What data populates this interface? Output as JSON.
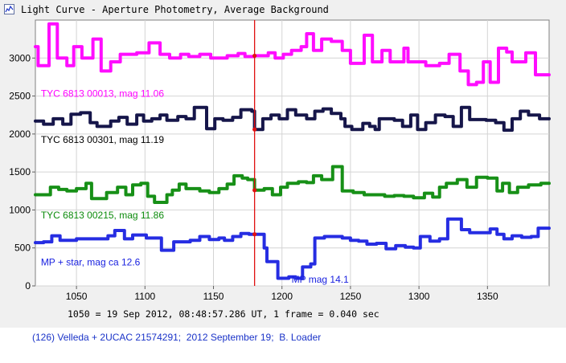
{
  "window": {
    "title": "Light Curve - Aperture Photometry, Average Background",
    "icon": "light-curve-app-icon"
  },
  "caption": "1050 = 19 Sep 2012, 08:48:57.286 UT, 1 frame = 0.040 sec",
  "footer": "(126) Velleda + 2UCAC 21574291;  2012 September 19;  B. Loader",
  "chart_data": {
    "type": "line",
    "title": "",
    "xlabel": "",
    "ylabel": "",
    "xlim": [
      1020,
      1395
    ],
    "ylim": [
      0,
      3500
    ],
    "x_ticks": [
      1050,
      1100,
      1150,
      1200,
      1250,
      1300,
      1350
    ],
    "y_ticks": [
      0,
      500,
      1000,
      1500,
      2000,
      2500,
      3000
    ],
    "grid": true,
    "event_marker_x": 1180,
    "series": [
      {
        "name": "TYC 6813 00013, mag 11.06",
        "color": "#ff00ff",
        "steps": [
          [
            1020,
            3150
          ],
          [
            1022,
            2900
          ],
          [
            1030,
            3450
          ],
          [
            1036,
            3000
          ],
          [
            1043,
            2900
          ],
          [
            1048,
            3150
          ],
          [
            1054,
            3000
          ],
          [
            1062,
            3250
          ],
          [
            1068,
            2830
          ],
          [
            1075,
            2950
          ],
          [
            1082,
            3050
          ],
          [
            1094,
            3070
          ],
          [
            1103,
            3200
          ],
          [
            1111,
            3050
          ],
          [
            1118,
            3000
          ],
          [
            1126,
            3050
          ],
          [
            1132,
            3020
          ],
          [
            1140,
            3050
          ],
          [
            1148,
            3000
          ],
          [
            1160,
            3030
          ],
          [
            1168,
            3060
          ],
          [
            1173,
            3020
          ],
          [
            1180,
            3030
          ],
          [
            1190,
            3070
          ],
          [
            1195,
            3000
          ],
          [
            1201,
            3050
          ],
          [
            1207,
            3100
          ],
          [
            1214,
            3150
          ],
          [
            1218,
            3320
          ],
          [
            1223,
            3100
          ],
          [
            1229,
            3250
          ],
          [
            1236,
            3220
          ],
          [
            1244,
            3100
          ],
          [
            1250,
            2930
          ],
          [
            1260,
            3300
          ],
          [
            1266,
            2950
          ],
          [
            1273,
            3100
          ],
          [
            1279,
            2950
          ],
          [
            1289,
            3130
          ],
          [
            1292,
            2950
          ],
          [
            1305,
            2900
          ],
          [
            1315,
            2930
          ],
          [
            1322,
            3050
          ],
          [
            1330,
            2830
          ],
          [
            1336,
            2650
          ],
          [
            1342,
            2680
          ],
          [
            1347,
            2950
          ],
          [
            1352,
            2680
          ],
          [
            1358,
            3130
          ],
          [
            1364,
            3080
          ],
          [
            1368,
            2950
          ],
          [
            1378,
            3070
          ],
          [
            1385,
            2780
          ],
          [
            1395,
            2780
          ]
        ]
      },
      {
        "name": "TYC 6813 00301, mag 11.19",
        "color": "#0a0a40",
        "steps": [
          [
            1020,
            2170
          ],
          [
            1026,
            2130
          ],
          [
            1033,
            2200
          ],
          [
            1040,
            2130
          ],
          [
            1046,
            2260
          ],
          [
            1053,
            2280
          ],
          [
            1060,
            2150
          ],
          [
            1065,
            2100
          ],
          [
            1075,
            2170
          ],
          [
            1081,
            2220
          ],
          [
            1087,
            2130
          ],
          [
            1094,
            2250
          ],
          [
            1099,
            2170
          ],
          [
            1105,
            2200
          ],
          [
            1111,
            2250
          ],
          [
            1116,
            2180
          ],
          [
            1124,
            2230
          ],
          [
            1130,
            2200
          ],
          [
            1136,
            2350
          ],
          [
            1145,
            2070
          ],
          [
            1151,
            2200
          ],
          [
            1157,
            2180
          ],
          [
            1164,
            2220
          ],
          [
            1170,
            2320
          ],
          [
            1178,
            2300
          ],
          [
            1180,
            2060
          ],
          [
            1186,
            2200
          ],
          [
            1192,
            2250
          ],
          [
            1198,
            2200
          ],
          [
            1204,
            2320
          ],
          [
            1210,
            2250
          ],
          [
            1218,
            2200
          ],
          [
            1224,
            2300
          ],
          [
            1230,
            2330
          ],
          [
            1236,
            2270
          ],
          [
            1243,
            2200
          ],
          [
            1246,
            2100
          ],
          [
            1251,
            2060
          ],
          [
            1259,
            2140
          ],
          [
            1264,
            2100
          ],
          [
            1268,
            2060
          ],
          [
            1271,
            2200
          ],
          [
            1282,
            2180
          ],
          [
            1288,
            2100
          ],
          [
            1294,
            2250
          ],
          [
            1299,
            2060
          ],
          [
            1305,
            2150
          ],
          [
            1312,
            2250
          ],
          [
            1319,
            2230
          ],
          [
            1325,
            2100
          ],
          [
            1331,
            2350
          ],
          [
            1337,
            2190
          ],
          [
            1349,
            2180
          ],
          [
            1356,
            2150
          ],
          [
            1362,
            2050
          ],
          [
            1368,
            2200
          ],
          [
            1374,
            2300
          ],
          [
            1380,
            2250
          ],
          [
            1388,
            2200
          ],
          [
            1395,
            2200
          ]
        ]
      },
      {
        "name": "TYC 6813 00215, mag 11.86",
        "color": "#0b8a0b",
        "steps": [
          [
            1020,
            1200
          ],
          [
            1026,
            1200
          ],
          [
            1031,
            1300
          ],
          [
            1037,
            1270
          ],
          [
            1043,
            1250
          ],
          [
            1050,
            1280
          ],
          [
            1057,
            1350
          ],
          [
            1061,
            1150
          ],
          [
            1072,
            1230
          ],
          [
            1080,
            1300
          ],
          [
            1086,
            1200
          ],
          [
            1091,
            1330
          ],
          [
            1097,
            1350
          ],
          [
            1102,
            1180
          ],
          [
            1107,
            1100
          ],
          [
            1116,
            1200
          ],
          [
            1120,
            1260
          ],
          [
            1125,
            1340
          ],
          [
            1130,
            1280
          ],
          [
            1140,
            1250
          ],
          [
            1147,
            1230
          ],
          [
            1154,
            1280
          ],
          [
            1160,
            1340
          ],
          [
            1165,
            1450
          ],
          [
            1171,
            1420
          ],
          [
            1175,
            1400
          ],
          [
            1180,
            1260
          ],
          [
            1187,
            1280
          ],
          [
            1193,
            1200
          ],
          [
            1199,
            1300
          ],
          [
            1204,
            1350
          ],
          [
            1212,
            1370
          ],
          [
            1218,
            1360
          ],
          [
            1223,
            1450
          ],
          [
            1229,
            1400
          ],
          [
            1237,
            1570
          ],
          [
            1244,
            1250
          ],
          [
            1252,
            1230
          ],
          [
            1260,
            1200
          ],
          [
            1268,
            1200
          ],
          [
            1275,
            1180
          ],
          [
            1282,
            1190
          ],
          [
            1289,
            1180
          ],
          [
            1296,
            1160
          ],
          [
            1304,
            1220
          ],
          [
            1310,
            1170
          ],
          [
            1315,
            1300
          ],
          [
            1320,
            1350
          ],
          [
            1328,
            1400
          ],
          [
            1335,
            1300
          ],
          [
            1342,
            1430
          ],
          [
            1350,
            1420
          ],
          [
            1357,
            1250
          ],
          [
            1361,
            1350
          ],
          [
            1366,
            1230
          ],
          [
            1372,
            1300
          ],
          [
            1380,
            1330
          ],
          [
            1389,
            1350
          ],
          [
            1395,
            1350
          ]
        ]
      },
      {
        "name": "MP + star, mag ca 12.6",
        "color": "#1a22e0",
        "steps": [
          [
            1020,
            570
          ],
          [
            1026,
            580
          ],
          [
            1032,
            660
          ],
          [
            1038,
            600
          ],
          [
            1044,
            600
          ],
          [
            1050,
            620
          ],
          [
            1062,
            620
          ],
          [
            1068,
            620
          ],
          [
            1073,
            660
          ],
          [
            1078,
            730
          ],
          [
            1085,
            620
          ],
          [
            1091,
            670
          ],
          [
            1101,
            630
          ],
          [
            1106,
            630
          ],
          [
            1112,
            470
          ],
          [
            1121,
            580
          ],
          [
            1127,
            580
          ],
          [
            1133,
            600
          ],
          [
            1140,
            650
          ],
          [
            1147,
            610
          ],
          [
            1154,
            630
          ],
          [
            1158,
            600
          ],
          [
            1164,
            650
          ],
          [
            1170,
            690
          ],
          [
            1176,
            680
          ],
          [
            1180,
            680
          ],
          [
            1187,
            500
          ],
          [
            1189,
            320
          ],
          [
            1195,
            320
          ],
          [
            1197,
            100
          ],
          [
            1205,
            120
          ],
          [
            1210,
            100
          ],
          [
            1215,
            250
          ],
          [
            1221,
            290
          ],
          [
            1224,
            630
          ],
          [
            1231,
            650
          ],
          [
            1237,
            650
          ],
          [
            1244,
            630
          ],
          [
            1250,
            600
          ],
          [
            1256,
            590
          ],
          [
            1262,
            550
          ],
          [
            1269,
            560
          ],
          [
            1276,
            490
          ],
          [
            1283,
            530
          ],
          [
            1290,
            510
          ],
          [
            1296,
            500
          ],
          [
            1301,
            650
          ],
          [
            1308,
            590
          ],
          [
            1315,
            620
          ],
          [
            1321,
            880
          ],
          [
            1331,
            740
          ],
          [
            1337,
            700
          ],
          [
            1345,
            700
          ],
          [
            1352,
            750
          ],
          [
            1357,
            680
          ],
          [
            1362,
            620
          ],
          [
            1368,
            660
          ],
          [
            1375,
            640
          ],
          [
            1382,
            650
          ],
          [
            1387,
            760
          ],
          [
            1395,
            760
          ]
        ]
      }
    ],
    "annotations": [
      {
        "text": "TYC 6813 00013, mag 11.06",
        "color": "#ff00ff",
        "x": 1024,
        "y": 2490
      },
      {
        "text": "TYC 6813 00301, mag 11.19",
        "color": "#000000",
        "x": 1024,
        "y": 1880
      },
      {
        "text": "TYC 6813 00215, mag 11.86",
        "color": "#0b8a0b",
        "x": 1024,
        "y": 890
      },
      {
        "text": "MP + star, mag ca 12.6",
        "color": "#1a22e0",
        "x": 1024,
        "y": 270
      },
      {
        "text": "MP mag 14.1",
        "color": "#1a22e0",
        "x": 1207,
        "y": 40
      }
    ]
  }
}
